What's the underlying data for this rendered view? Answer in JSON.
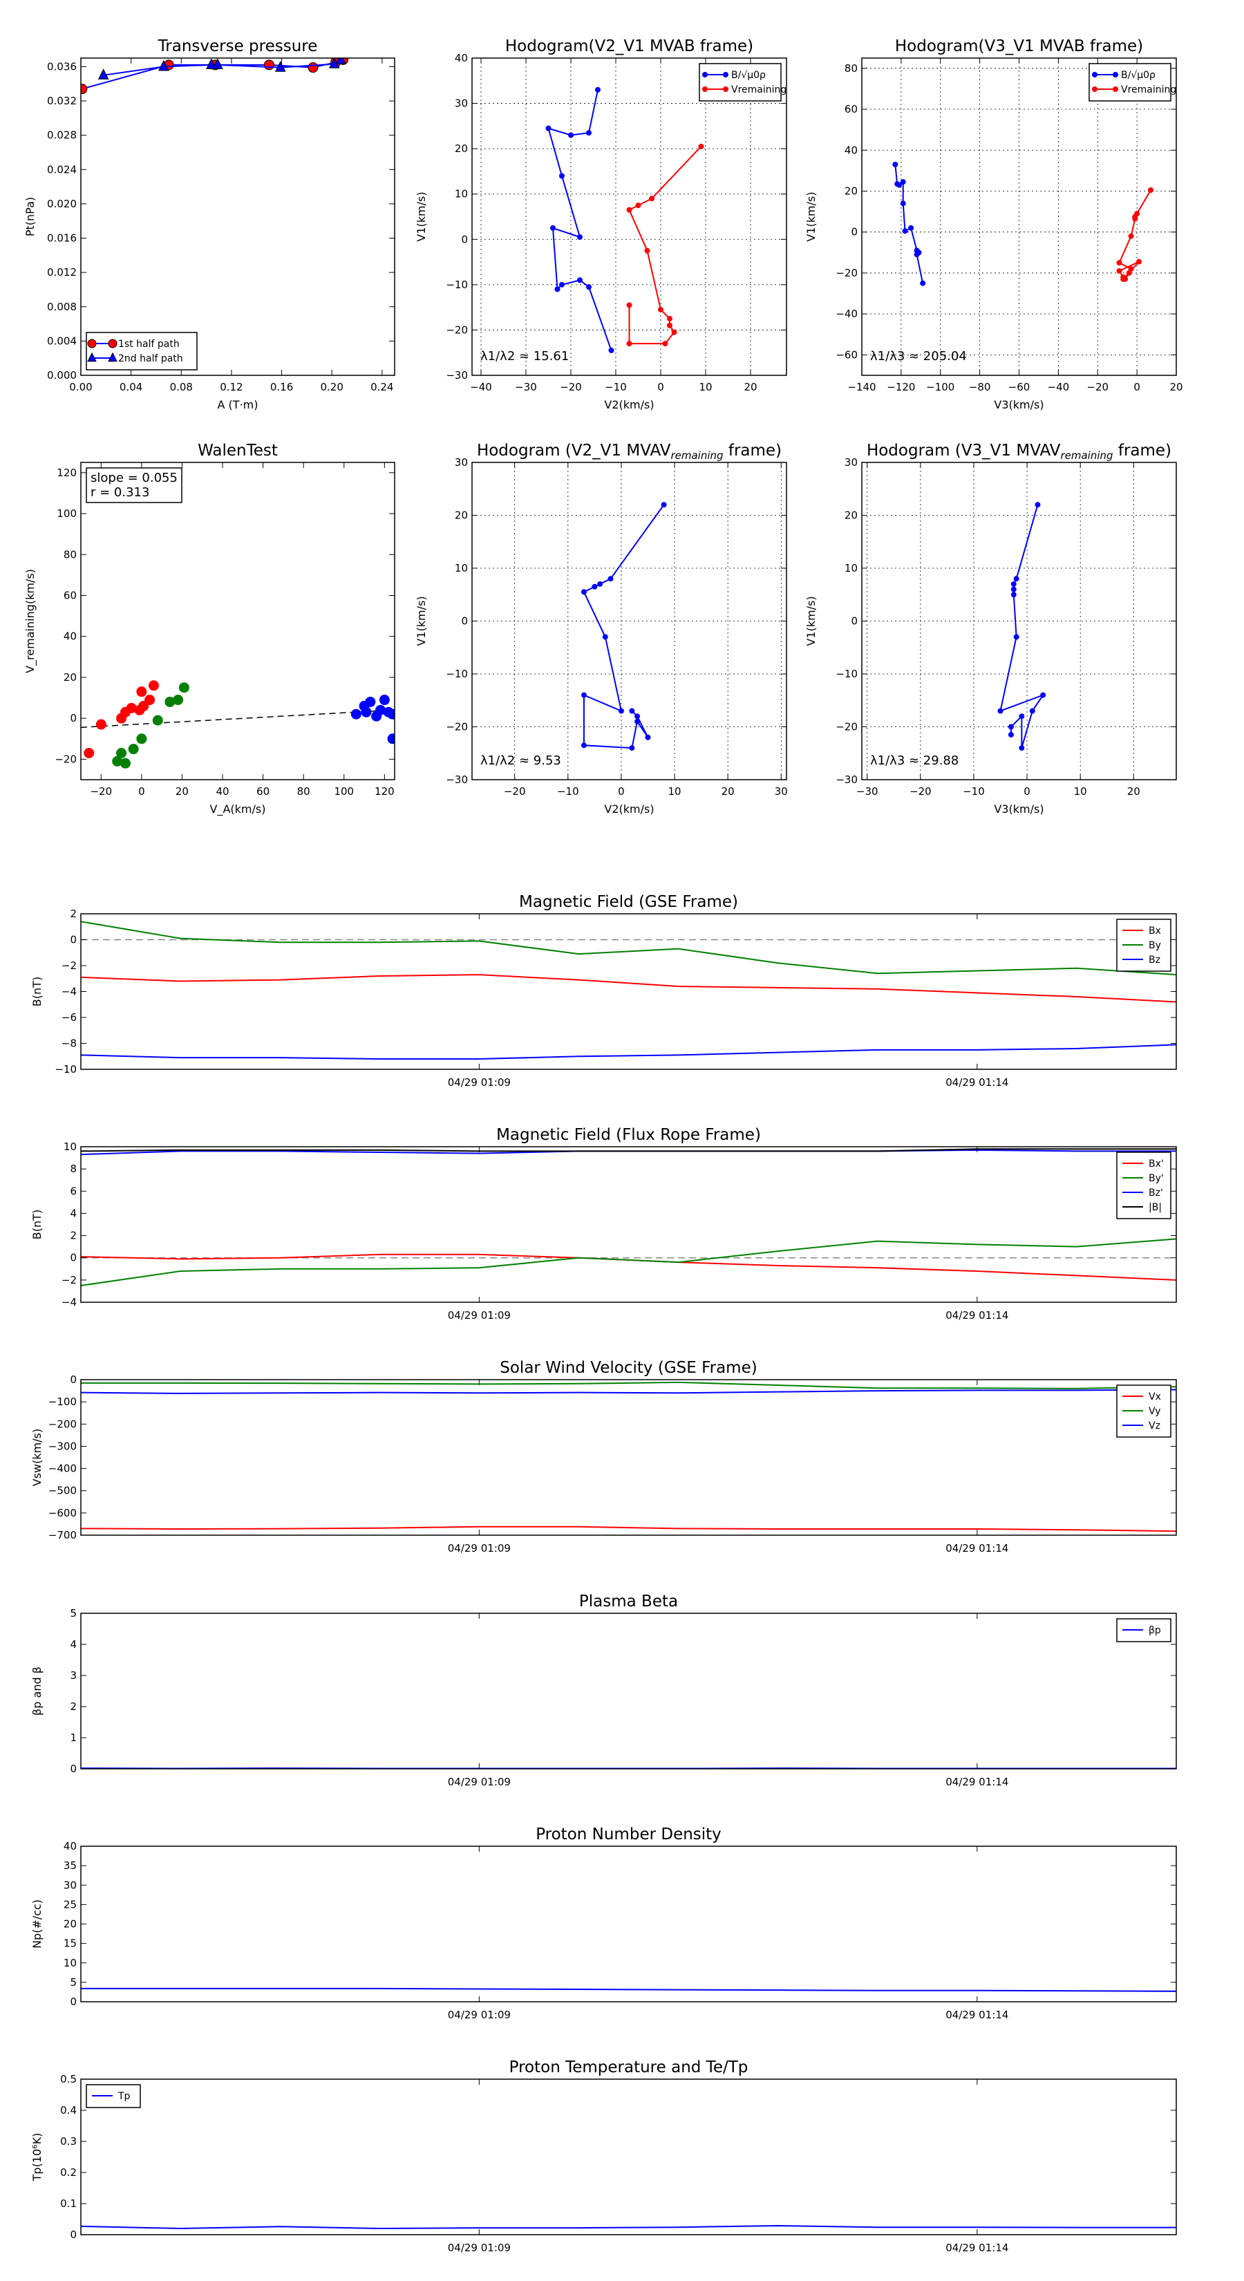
{
  "chart_data": [
    {
      "id": "transverse_pressure",
      "type": "line",
      "title": "Transverse pressure",
      "xlabel": "A (T·m)",
      "ylabel": "Pt(nPa)",
      "xlim": [
        0.0,
        0.25
      ],
      "ylim": [
        0.0,
        0.037
      ],
      "xticks": [
        0.0,
        0.04,
        0.08,
        0.12,
        0.16,
        0.2,
        0.24
      ],
      "xtick_labels": [
        "0.00",
        "0.04",
        "0.08",
        "0.12",
        "0.16",
        "0.20",
        "0.24"
      ],
      "yticks": [
        0.0,
        0.004,
        0.008,
        0.012,
        0.016,
        0.02,
        0.024,
        0.028,
        0.032,
        0.036
      ],
      "ytick_labels": [
        "0.000",
        "0.004",
        "0.008",
        "0.012",
        "0.016",
        "0.020",
        "0.024",
        "0.028",
        "0.032",
        "0.036"
      ],
      "grid": false,
      "legend_position": "lower-left",
      "series": [
        {
          "name": "1st half path",
          "marker": "circle",
          "color": "#ff0000",
          "line_color": "#0000ff",
          "x": [
            0.001,
            0.07,
            0.107,
            0.15,
            0.185,
            0.203,
            0.209
          ],
          "y": [
            0.0334,
            0.0362,
            0.0362,
            0.0362,
            0.0359,
            0.0365,
            0.0368
          ]
        },
        {
          "name": "2nd half path",
          "marker": "triangle",
          "color": "#0000ff",
          "line_color": "#0000ff",
          "x": [
            0.018,
            0.066,
            0.104,
            0.109,
            0.159,
            0.202,
            0.207
          ],
          "y": [
            0.035,
            0.036,
            0.0362,
            0.0362,
            0.0359,
            0.0363,
            0.0368
          ]
        }
      ]
    },
    {
      "id": "hodogram_v2v1_mvab",
      "type": "line",
      "title": "Hodogram(V2_V1 MVAB frame)",
      "xlabel": "V2(km/s)",
      "ylabel": "V1(km/s)",
      "xlim": [
        -42,
        28
      ],
      "ylim": [
        -30,
        40
      ],
      "xticks": [
        -40,
        -30,
        -20,
        -10,
        0,
        10,
        20
      ],
      "yticks": [
        -30,
        -20,
        -10,
        0,
        10,
        20,
        30,
        40
      ],
      "grid": true,
      "legend_position": "upper-right",
      "annotation": "λ1/λ2 ≈ 15.61",
      "series": [
        {
          "name": "B/√μ0ρ",
          "color": "#0000ff",
          "x": [
            -14,
            -16,
            -20,
            -25,
            -22,
            -18,
            -24,
            -23,
            -22,
            -18,
            -16,
            -11
          ],
          "y": [
            33,
            23.5,
            23,
            24.5,
            14,
            0.5,
            2.5,
            -11,
            -10,
            -9,
            -10.5,
            -24.5
          ]
        },
        {
          "name": "Vremaining",
          "color": "#ff0000",
          "x": [
            9,
            -2,
            -5,
            -7,
            -3,
            0,
            2,
            2,
            3,
            1,
            -7,
            -7
          ],
          "y": [
            20.5,
            9,
            7.5,
            6.5,
            -2.5,
            -15.5,
            -17.5,
            -19,
            -20.5,
            -23,
            -23,
            -14.5
          ]
        }
      ]
    },
    {
      "id": "hodogram_v3v1_mvab",
      "type": "line",
      "title": "Hodogram(V3_V1 MVAB frame)",
      "xlabel": "V3(km/s)",
      "ylabel": "V1(km/s)",
      "xlim": [
        -140,
        20
      ],
      "ylim": [
        -70,
        85
      ],
      "xticks": [
        -140,
        -120,
        -100,
        -80,
        -60,
        -40,
        -20,
        0,
        20
      ],
      "yticks": [
        -60,
        -40,
        -20,
        0,
        20,
        40,
        60,
        80
      ],
      "grid": true,
      "legend_position": "upper-right",
      "annotation": "λ1/λ3 ≈ 205.04",
      "series": [
        {
          "name": "B/√μ0ρ",
          "color": "#0000ff",
          "x": [
            -123,
            -122,
            -121,
            -119,
            -119,
            -118,
            -115,
            -112,
            -111,
            -112,
            -109
          ],
          "y": [
            33,
            23.5,
            23,
            24.5,
            14,
            0.5,
            2,
            -9,
            -10,
            -11,
            -25
          ]
        },
        {
          "name": "Vremaining",
          "color": "#ff0000",
          "x": [
            7,
            0,
            -1,
            -1,
            -3,
            -9,
            -3,
            -4,
            -6,
            -7,
            1,
            -9,
            -7
          ],
          "y": [
            20.5,
            9,
            7.5,
            6.5,
            -2,
            -15,
            -18,
            -20,
            -23,
            -23,
            -14.5,
            -19,
            -22
          ]
        }
      ]
    },
    {
      "id": "walen_test",
      "type": "scatter",
      "title": "WalenTest",
      "xlabel": "V_A(km/s)",
      "ylabel": "V_remaining(km/s)",
      "xlim": [
        -30,
        125
      ],
      "ylim": [
        -30,
        125
      ],
      "xticks": [
        -20,
        0,
        20,
        40,
        60,
        80,
        100,
        120
      ],
      "yticks": [
        -20,
        0,
        20,
        40,
        60,
        80,
        100,
        120
      ],
      "grid": false,
      "annotation_lines": [
        "slope = 0.055",
        "r = 0.313"
      ],
      "fit_line": {
        "slope": 0.055,
        "intercept": -2.8
      },
      "series": [
        {
          "name": "",
          "color": "#ff0000",
          "x": [
            -20,
            -10,
            -8,
            -5,
            -1,
            1,
            4,
            6,
            0,
            -26
          ],
          "y": [
            -3,
            0,
            3,
            5,
            4,
            6,
            9,
            16,
            13,
            -17
          ]
        },
        {
          "name": "",
          "color": "#008000",
          "x": [
            -12,
            -8,
            -4,
            0,
            8,
            14,
            18,
            21,
            -10
          ],
          "y": [
            -21,
            -22,
            -15,
            -10,
            -1,
            8,
            9,
            15,
            -17
          ]
        },
        {
          "name": "",
          "color": "#0000ff",
          "x": [
            106,
            110,
            113,
            116,
            118,
            120,
            122,
            124,
            111,
            124
          ],
          "y": [
            2,
            6,
            8,
            1,
            4,
            9,
            3,
            2,
            3,
            -10
          ]
        }
      ]
    },
    {
      "id": "hodogram_v2v1_mvav",
      "type": "line",
      "title": "Hodogram (V2_V1 MVAV",
      "title_sub": "remaining",
      "title_end": " frame)",
      "xlabel": "V2(km/s)",
      "ylabel": "V1(km/s)",
      "xlim": [
        -28,
        31
      ],
      "ylim": [
        -30,
        30
      ],
      "xticks": [
        -20,
        -10,
        0,
        10,
        20,
        30
      ],
      "yticks": [
        -30,
        -20,
        -10,
        0,
        10,
        20,
        30
      ],
      "grid": true,
      "annotation": "λ1/λ2 ≈ 9.53",
      "series": [
        {
          "name": "",
          "color": "#0000ff",
          "x": [
            8,
            -2,
            -4,
            -5,
            -7,
            -3,
            0,
            -7,
            -7,
            2,
            3,
            5,
            3,
            2
          ],
          "y": [
            22,
            8,
            7,
            6.5,
            5.5,
            -3,
            -17,
            -14,
            -23.5,
            -24,
            -19,
            -22,
            -18,
            -17
          ]
        }
      ]
    },
    {
      "id": "hodogram_v3v1_mvav",
      "type": "line",
      "title": "Hodogram (V3_V1 MVAV",
      "title_sub": "remaining",
      "title_end": " frame)",
      "xlabel": "V3(km/s)",
      "ylabel": "V1(km/s)",
      "xlim": [
        -31,
        28
      ],
      "ylim": [
        -30,
        30
      ],
      "xticks": [
        -30,
        -20,
        -10,
        0,
        10,
        20
      ],
      "yticks": [
        -30,
        -20,
        -10,
        0,
        10,
        20,
        30
      ],
      "grid": true,
      "annotation": "λ1/λ3 ≈ 29.88",
      "series": [
        {
          "name": "",
          "color": "#0000ff",
          "x": [
            2,
            -2,
            -2.5,
            -2.5,
            -2.5,
            -2,
            -5,
            3,
            1,
            -1,
            -1,
            -3,
            -3
          ],
          "y": [
            22,
            8,
            7,
            6,
            5,
            -3,
            -17,
            -14,
            -17,
            -24,
            -18,
            -20,
            -21.5
          ]
        }
      ]
    },
    {
      "id": "magnetic_field_gse",
      "type": "line",
      "title": "Magnetic Field (GSE Frame)",
      "ylabel": "B(nT)",
      "xlim": [
        0,
        11
      ],
      "ylim": [
        -10,
        2
      ],
      "yticks": [
        -10,
        -8,
        -6,
        -4,
        -2,
        0,
        2
      ],
      "xtick_positions": [
        4,
        9
      ],
      "xtick_labels": [
        "04/29 01:09",
        "04/29 01:14"
      ],
      "zero_line": true,
      "legend_position": "upper-right",
      "x": [
        0,
        1,
        2,
        3,
        4,
        5,
        6,
        7,
        8,
        9,
        10,
        11
      ],
      "series": [
        {
          "name": "Bx",
          "color": "#ff0000",
          "values": [
            -2.9,
            -3.2,
            -3.1,
            -2.8,
            -2.7,
            -3.1,
            -3.6,
            -3.7,
            -3.8,
            -4.1,
            -4.4,
            -4.8
          ]
        },
        {
          "name": "By",
          "color": "#008000",
          "values": [
            1.4,
            0.1,
            -0.2,
            -0.2,
            -0.1,
            -1.1,
            -0.7,
            -1.8,
            -2.6,
            -2.4,
            -2.2,
            -2.7
          ]
        },
        {
          "name": "Bz",
          "color": "#0000ff",
          "values": [
            -8.9,
            -9.1,
            -9.1,
            -9.2,
            -9.2,
            -9.0,
            -8.9,
            -8.7,
            -8.5,
            -8.5,
            -8.4,
            -8.1
          ]
        }
      ]
    },
    {
      "id": "magnetic_field_flux_rope",
      "type": "line",
      "title": "Magnetic Field (Flux Rope Frame)",
      "ylabel": "B(nT)",
      "xlim": [
        0,
        11
      ],
      "ylim": [
        -4,
        10
      ],
      "yticks": [
        -4,
        -2,
        0,
        2,
        4,
        6,
        8,
        10
      ],
      "xtick_positions": [
        4,
        9
      ],
      "xtick_labels": [
        "04/29 01:09",
        "04/29 01:14"
      ],
      "zero_line": true,
      "legend_position": "upper-right",
      "x": [
        0,
        1,
        2,
        3,
        4,
        5,
        6,
        7,
        8,
        9,
        10,
        11
      ],
      "series": [
        {
          "name": "Bx'",
          "color": "#ff0000",
          "values": [
            0.1,
            -0.1,
            0.0,
            0.3,
            0.3,
            0.0,
            -0.4,
            -0.7,
            -0.9,
            -1.2,
            -1.6,
            -2.0
          ]
        },
        {
          "name": "By'",
          "color": "#008000",
          "values": [
            -2.5,
            -1.2,
            -1.0,
            -1.0,
            -0.9,
            0.0,
            -0.4,
            0.6,
            1.5,
            1.2,
            1.0,
            1.7
          ]
        },
        {
          "name": "Bz'",
          "color": "#0000ff",
          "values": [
            9.3,
            9.6,
            9.6,
            9.5,
            9.4,
            9.6,
            9.6,
            9.6,
            9.6,
            9.7,
            9.6,
            9.6
          ]
        },
        {
          "name": "|B|",
          "color": "#000000",
          "values": [
            9.6,
            9.7,
            9.7,
            9.7,
            9.6,
            9.6,
            9.6,
            9.6,
            9.6,
            9.8,
            9.8,
            9.8
          ]
        }
      ]
    },
    {
      "id": "solar_wind_velocity",
      "type": "line",
      "title": "Solar Wind Velocity (GSE Frame)",
      "ylabel": "Vsw(km/s)",
      "xlim": [
        0,
        11
      ],
      "ylim": [
        -700,
        0
      ],
      "yticks": [
        -700,
        -600,
        -500,
        -400,
        -300,
        -200,
        -100,
        0
      ],
      "xtick_positions": [
        4,
        9
      ],
      "xtick_labels": [
        "04/29 01:09",
        "04/29 01:14"
      ],
      "legend_position": "upper-right",
      "x": [
        0,
        1,
        2,
        3,
        4,
        5,
        6,
        7,
        8,
        9,
        10,
        11
      ],
      "series": [
        {
          "name": "Vx",
          "color": "#ff0000",
          "values": [
            -670,
            -672,
            -671,
            -668,
            -662,
            -662,
            -670,
            -672,
            -672,
            -672,
            -676,
            -682
          ]
        },
        {
          "name": "Vy",
          "color": "#008000",
          "values": [
            -15,
            -15,
            -16,
            -18,
            -20,
            -18,
            -12,
            -25,
            -38,
            -38,
            -40,
            -32
          ]
        },
        {
          "name": "Vz",
          "color": "#0000ff",
          "values": [
            -58,
            -62,
            -60,
            -58,
            -60,
            -58,
            -60,
            -55,
            -50,
            -48,
            -48,
            -45
          ]
        }
      ]
    },
    {
      "id": "plasma_beta",
      "type": "line",
      "title": "Plasma Beta",
      "ylabel": "βp and β",
      "xlim": [
        0,
        11
      ],
      "ylim": [
        0,
        5
      ],
      "yticks": [
        0,
        1,
        2,
        3,
        4,
        5
      ],
      "xtick_positions": [
        4,
        9
      ],
      "xtick_labels": [
        "04/29 01:09",
        "04/29 01:14"
      ],
      "legend_position": "upper-right",
      "x": [
        0,
        1,
        2,
        3,
        4,
        5,
        6,
        7,
        8,
        9,
        10,
        11
      ],
      "series": [
        {
          "name": "βp",
          "color": "#0000ff",
          "values": [
            0.02,
            0.01,
            0.02,
            0.01,
            0.01,
            0.01,
            0.01,
            0.02,
            0.01,
            0.01,
            0.01,
            0.01
          ]
        }
      ]
    },
    {
      "id": "proton_number_density",
      "type": "line",
      "title": "Proton Number Density",
      "ylabel": "Np(#/cc)",
      "xlim": [
        0,
        11
      ],
      "ylim": [
        0,
        40
      ],
      "yticks": [
        0,
        5,
        10,
        15,
        20,
        25,
        30,
        35,
        40
      ],
      "xtick_positions": [
        4,
        9
      ],
      "xtick_labels": [
        "04/29 01:09",
        "04/29 01:14"
      ],
      "x": [
        0,
        1,
        2,
        3,
        4,
        5,
        6,
        7,
        8,
        9,
        10,
        11
      ],
      "series": [
        {
          "name": "",
          "color": "#0000ff",
          "values": [
            3.4,
            3.4,
            3.4,
            3.4,
            3.3,
            3.2,
            3.1,
            3.0,
            2.9,
            2.9,
            2.8,
            2.7
          ]
        }
      ]
    },
    {
      "id": "proton_temperature",
      "type": "line",
      "title": "Proton Temperature and Te/Tp",
      "ylabel": "Tp(10⁶K)",
      "xlim": [
        0,
        11
      ],
      "ylim": [
        0,
        0.5
      ],
      "yticks": [
        0.0,
        0.1,
        0.2,
        0.3,
        0.4,
        0.5
      ],
      "xtick_positions": [
        4,
        9
      ],
      "xtick_labels": [
        "04/29 01:09",
        "04/29 01:14"
      ],
      "legend_position": "upper-left",
      "x": [
        0,
        1,
        2,
        3,
        4,
        5,
        6,
        7,
        8,
        9,
        10,
        11
      ],
      "series": [
        {
          "name": "Tp",
          "color": "#0000ff",
          "values": [
            0.027,
            0.02,
            0.026,
            0.02,
            0.022,
            0.022,
            0.024,
            0.029,
            0.024,
            0.024,
            0.023,
            0.023
          ]
        }
      ]
    }
  ]
}
